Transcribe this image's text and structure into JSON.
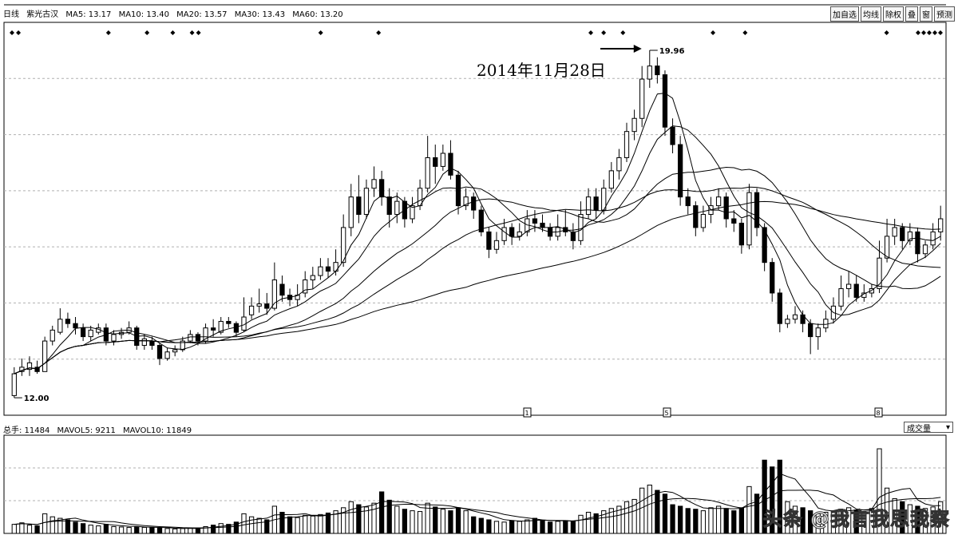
{
  "header": {
    "period": "日线",
    "stock": "紫光古汉",
    "ma5": "MA5: 13.17",
    "ma10": "MA10: 13.40",
    "ma20": "MA20: 13.57",
    "ma30": "MA30: 13.43",
    "ma60": "MA60: 13.20",
    "arrow": "↑"
  },
  "buttons": [
    "加自选",
    "均线",
    "除权",
    "叠",
    "窗",
    "预测"
  ],
  "volume_header": {
    "label": "总手: 11484",
    "mavol5": "MAVOL5: 9211",
    "mavol10": "MAVOL10: 11849",
    "arrow": "↑",
    "selector": "成交量",
    "selector_icon": "chevron-down-icon"
  },
  "annotation": {
    "text": "2014年11月28日",
    "high_label": "19.96",
    "low_label": "12.00"
  },
  "watermark": "头条 @我言我思我察",
  "colors": {
    "up": "#000000",
    "down": "#000000",
    "grid": "#b0b0b0",
    "ma": "#000000"
  },
  "chart_data": {
    "type": "candlestick",
    "price_range": [
      11.6,
      20.6
    ],
    "volume_range": [
      0,
      130000
    ],
    "high": 19.96,
    "low": 12.0,
    "candles": [
      [
        12.05,
        12.55,
        12.0,
        12.7
      ],
      [
        12.6,
        12.7,
        12.5,
        12.9
      ],
      [
        12.65,
        12.8,
        12.5,
        12.95
      ],
      [
        12.7,
        12.6,
        12.55,
        12.85
      ],
      [
        12.6,
        13.3,
        12.6,
        13.4
      ],
      [
        13.3,
        13.55,
        13.2,
        13.65
      ],
      [
        13.5,
        13.8,
        13.45,
        14.05
      ],
      [
        13.8,
        13.7,
        13.6,
        13.95
      ],
      [
        13.7,
        13.6,
        13.45,
        13.85
      ],
      [
        13.6,
        13.4,
        13.3,
        13.7
      ],
      [
        13.4,
        13.55,
        13.3,
        13.65
      ],
      [
        13.5,
        13.6,
        13.45,
        13.7
      ],
      [
        13.6,
        13.3,
        13.2,
        13.7
      ],
      [
        13.3,
        13.45,
        13.2,
        13.55
      ],
      [
        13.45,
        13.5,
        13.35,
        13.6
      ],
      [
        13.5,
        13.6,
        13.45,
        13.75
      ],
      [
        13.6,
        13.2,
        13.1,
        13.65
      ],
      [
        13.2,
        13.35,
        13.1,
        13.45
      ],
      [
        13.3,
        13.2,
        13.1,
        13.4
      ],
      [
        13.2,
        12.9,
        12.75,
        13.25
      ],
      [
        12.9,
        13.05,
        12.85,
        13.15
      ],
      [
        13.05,
        13.1,
        12.95,
        13.2
      ],
      [
        13.1,
        13.3,
        13.05,
        13.4
      ],
      [
        13.3,
        13.45,
        13.25,
        13.55
      ],
      [
        13.45,
        13.3,
        13.2,
        13.5
      ],
      [
        13.3,
        13.6,
        13.25,
        13.7
      ],
      [
        13.6,
        13.55,
        13.4,
        13.8
      ],
      [
        13.5,
        13.75,
        13.45,
        13.85
      ],
      [
        13.75,
        13.7,
        13.6,
        13.85
      ],
      [
        13.7,
        13.5,
        13.4,
        13.75
      ],
      [
        13.55,
        13.85,
        13.5,
        14.3
      ],
      [
        13.9,
        14.1,
        13.8,
        14.3
      ],
      [
        14.1,
        14.15,
        13.95,
        14.5
      ],
      [
        14.15,
        14.05,
        13.9,
        14.4
      ],
      [
        14.05,
        14.7,
        14.0,
        15.1
      ],
      [
        14.6,
        14.35,
        14.2,
        14.8
      ],
      [
        14.35,
        14.25,
        14.1,
        14.5
      ],
      [
        14.25,
        14.35,
        14.1,
        14.6
      ],
      [
        14.4,
        14.7,
        14.3,
        14.9
      ],
      [
        14.7,
        14.8,
        14.5,
        15.0
      ],
      [
        14.8,
        15.0,
        14.7,
        15.2
      ],
      [
        15.0,
        14.9,
        14.75,
        15.2
      ],
      [
        14.9,
        15.1,
        14.8,
        15.4
      ],
      [
        15.1,
        15.9,
        15.0,
        16.2
      ],
      [
        15.9,
        16.6,
        15.7,
        16.9
      ],
      [
        16.6,
        16.2,
        16.0,
        17.1
      ],
      [
        16.2,
        16.8,
        16.1,
        17.0
      ],
      [
        16.8,
        17.0,
        16.6,
        17.3
      ],
      [
        17.0,
        16.6,
        16.4,
        17.2
      ],
      [
        16.6,
        16.2,
        15.9,
        16.8
      ],
      [
        16.2,
        16.5,
        16.0,
        16.7
      ],
      [
        16.5,
        16.1,
        15.9,
        16.6
      ],
      [
        16.1,
        16.4,
        16.0,
        16.6
      ],
      [
        16.4,
        16.8,
        16.3,
        17.0
      ],
      [
        16.8,
        17.5,
        16.7,
        18.0
      ],
      [
        17.5,
        17.3,
        16.9,
        17.8
      ],
      [
        17.3,
        17.6,
        17.2,
        17.8
      ],
      [
        17.6,
        17.1,
        17.0,
        17.9
      ],
      [
        17.1,
        16.4,
        16.2,
        17.2
      ],
      [
        16.4,
        16.6,
        16.3,
        16.8
      ],
      [
        16.6,
        16.3,
        16.1,
        16.7
      ],
      [
        16.3,
        15.8,
        15.7,
        16.4
      ],
      [
        15.8,
        15.4,
        15.2,
        15.9
      ],
      [
        15.4,
        15.6,
        15.3,
        15.8
      ],
      [
        15.6,
        15.9,
        15.5,
        16.1
      ],
      [
        15.9,
        15.7,
        15.5,
        16.0
      ],
      [
        15.7,
        15.8,
        15.6,
        16.0
      ],
      [
        15.8,
        16.1,
        15.7,
        16.3
      ],
      [
        16.1,
        16.0,
        15.8,
        16.3
      ],
      [
        16.0,
        15.9,
        15.8,
        16.2
      ],
      [
        15.9,
        15.7,
        15.6,
        16.0
      ],
      [
        15.7,
        15.9,
        15.6,
        16.2
      ],
      [
        15.9,
        15.8,
        15.7,
        16.3
      ],
      [
        15.8,
        15.6,
        15.4,
        16.0
      ],
      [
        15.6,
        16.2,
        15.5,
        16.5
      ],
      [
        16.2,
        16.6,
        16.1,
        16.8
      ],
      [
        16.6,
        16.3,
        16.1,
        16.8
      ],
      [
        16.3,
        16.8,
        16.2,
        17.0
      ],
      [
        16.8,
        17.2,
        16.7,
        17.4
      ],
      [
        17.2,
        17.5,
        17.0,
        17.7
      ],
      [
        17.5,
        18.1,
        17.4,
        18.3
      ],
      [
        18.1,
        18.4,
        17.9,
        18.6
      ],
      [
        18.4,
        19.3,
        18.2,
        19.6
      ],
      [
        19.3,
        19.6,
        19.1,
        19.96
      ],
      [
        19.6,
        19.4,
        19.2,
        19.8
      ],
      [
        19.4,
        18.2,
        18.0,
        19.5
      ],
      [
        18.2,
        17.8,
        17.6,
        18.4
      ],
      [
        17.8,
        16.6,
        16.4,
        18.0
      ],
      [
        16.6,
        16.4,
        16.2,
        16.8
      ],
      [
        16.4,
        15.9,
        15.7,
        16.5
      ],
      [
        15.9,
        16.2,
        15.8,
        16.4
      ],
      [
        16.2,
        16.4,
        16.0,
        16.6
      ],
      [
        16.4,
        16.6,
        16.3,
        16.8
      ],
      [
        16.6,
        16.1,
        15.9,
        16.7
      ],
      [
        16.1,
        16.0,
        15.8,
        16.3
      ],
      [
        16.0,
        15.5,
        15.3,
        16.1
      ],
      [
        15.5,
        16.7,
        15.4,
        16.9
      ],
      [
        16.7,
        15.9,
        15.7,
        16.8
      ],
      [
        15.9,
        15.1,
        14.9,
        16.0
      ],
      [
        15.1,
        14.4,
        14.2,
        15.2
      ],
      [
        14.4,
        13.7,
        13.5,
        14.5
      ],
      [
        13.7,
        13.8,
        13.6,
        13.9
      ],
      [
        13.8,
        13.9,
        13.7,
        14.1
      ],
      [
        13.9,
        13.7,
        13.5,
        14.0
      ],
      [
        13.7,
        13.4,
        13.0,
        13.8
      ],
      [
        13.4,
        13.6,
        13.1,
        13.7
      ],
      [
        13.6,
        13.8,
        13.5,
        14.0
      ],
      [
        13.8,
        14.1,
        13.7,
        14.3
      ],
      [
        14.1,
        14.5,
        14.0,
        14.8
      ],
      [
        14.5,
        14.6,
        14.3,
        14.9
      ],
      [
        14.6,
        14.3,
        14.2,
        14.8
      ],
      [
        14.3,
        14.4,
        14.2,
        14.6
      ],
      [
        14.4,
        14.5,
        14.3,
        14.6
      ],
      [
        14.5,
        15.2,
        14.4,
        15.6
      ],
      [
        15.2,
        15.7,
        15.1,
        16.1
      ],
      [
        15.7,
        15.9,
        15.5,
        16.1
      ],
      [
        15.9,
        15.6,
        15.4,
        16.0
      ],
      [
        15.6,
        15.8,
        15.5,
        16.0
      ],
      [
        15.8,
        15.3,
        15.1,
        15.9
      ],
      [
        15.3,
        15.5,
        15.2,
        15.6
      ],
      [
        15.5,
        15.8,
        15.4,
        16.0
      ],
      [
        15.8,
        16.1,
        15.6,
        16.4
      ]
    ],
    "volumes": [
      12000,
      14000,
      11000,
      10000,
      26000,
      22000,
      20000,
      18000,
      15000,
      13000,
      11000,
      10000,
      12000,
      9000,
      8500,
      8000,
      9000,
      8000,
      7500,
      7000,
      6500,
      6000,
      6500,
      7000,
      7200,
      9000,
      11000,
      13000,
      12000,
      15000,
      26000,
      22000,
      20000,
      18000,
      36000,
      28000,
      22000,
      21000,
      24000,
      23000,
      25000,
      27000,
      30000,
      34000,
      42000,
      38000,
      35000,
      40000,
      55000,
      44000,
      36000,
      32000,
      30000,
      29000,
      40000,
      35000,
      32000,
      30000,
      34000,
      30000,
      22000,
      20000,
      18000,
      16000,
      15000,
      17000,
      16000,
      18000,
      20000,
      17000,
      15000,
      16000,
      17000,
      16000,
      24000,
      28000,
      26000,
      30000,
      33000,
      36000,
      42000,
      45000,
      60000,
      64000,
      57000,
      52000,
      38000,
      36000,
      33000,
      32000,
      30000,
      34000,
      36000,
      33000,
      30000,
      34000,
      62000,
      52000,
      97000,
      88000,
      97000,
      42000,
      36000,
      34000,
      30000,
      26000,
      28000,
      30000,
      32000,
      34000,
      31000,
      29000,
      33000,
      112000,
      60000,
      46000,
      42000,
      38000,
      36000,
      33000,
      35000,
      42000
    ],
    "day_markers": [
      "1",
      "5",
      "8"
    ]
  }
}
